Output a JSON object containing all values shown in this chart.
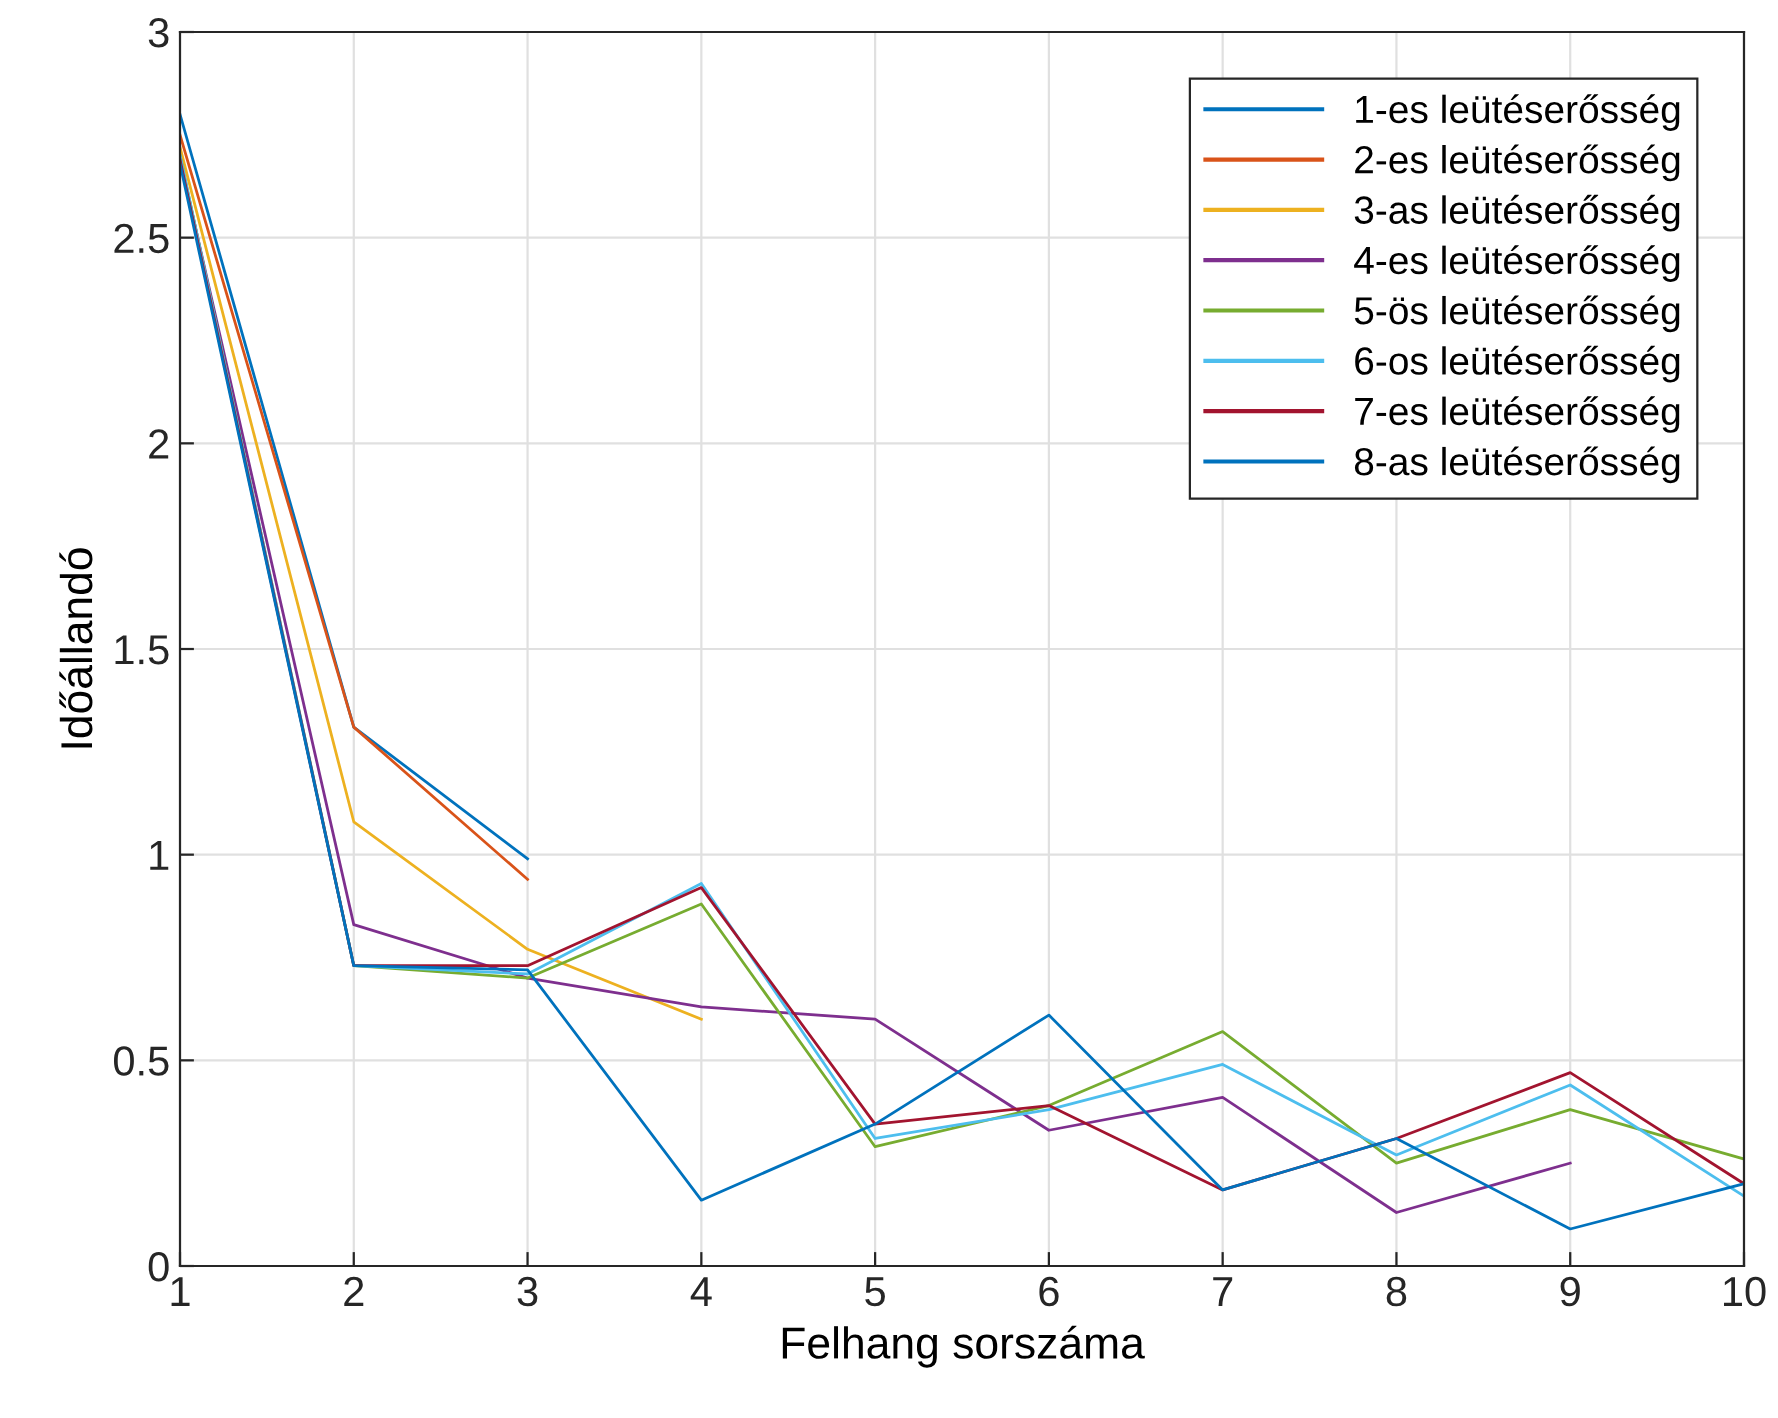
{
  "chart_data": {
    "type": "line",
    "xlabel": "Felhang sorszáma",
    "ylabel": "Időállandó",
    "x": [
      1,
      2,
      3,
      4,
      5,
      6,
      7,
      8,
      9,
      10
    ],
    "xlim": [
      1,
      10
    ],
    "xticks": [
      1,
      2,
      3,
      4,
      5,
      6,
      7,
      8,
      9,
      10
    ],
    "ylim": [
      0,
      3
    ],
    "yticks": [
      0,
      0.5,
      1,
      1.5,
      2,
      2.5,
      3
    ],
    "grid": true,
    "legend": "top right",
    "marker": "none",
    "line_style": "solid",
    "series": [
      {
        "name": "1-es leütéserősség",
        "color": "#0072bd",
        "values": [
          2.8,
          1.31,
          0.99,
          null,
          null,
          null,
          null,
          null,
          null,
          null
        ]
      },
      {
        "name": "2-es leütéserősség",
        "color": "#d95319",
        "values": [
          2.75,
          1.31,
          0.94,
          null,
          null,
          null,
          null,
          null,
          null,
          null
        ]
      },
      {
        "name": "3-as leütéserősség",
        "color": "#edb120",
        "values": [
          2.72,
          1.08,
          0.77,
          0.6,
          null,
          null,
          null,
          null,
          null,
          null
        ]
      },
      {
        "name": "4-es leütéserősség",
        "color": "#7e2f8e",
        "values": [
          2.69,
          0.83,
          0.7,
          0.63,
          0.6,
          0.33,
          0.41,
          0.13,
          0.25,
          null
        ]
      },
      {
        "name": "5-ös leütéserősség",
        "color": "#77ac30",
        "values": [
          2.7,
          0.73,
          0.7,
          0.88,
          0.29,
          0.39,
          0.57,
          0.25,
          0.38,
          0.26
        ]
      },
      {
        "name": "6-os leütéserősség",
        "color": "#4dbeee",
        "values": [
          2.7,
          0.73,
          0.71,
          0.93,
          0.31,
          0.38,
          0.49,
          0.27,
          0.44,
          0.17
        ]
      },
      {
        "name": "7-es leütéserősség",
        "color": "#a2142f",
        "values": [
          2.69,
          0.73,
          0.73,
          0.92,
          0.345,
          0.39,
          0.185,
          0.31,
          0.47,
          0.2
        ]
      },
      {
        "name": "8-as leütéserősség",
        "color": "#0072bd",
        "values": [
          2.68,
          0.73,
          0.72,
          0.16,
          0.345,
          0.61,
          0.185,
          0.31,
          0.09,
          0.2
        ]
      }
    ]
  }
}
